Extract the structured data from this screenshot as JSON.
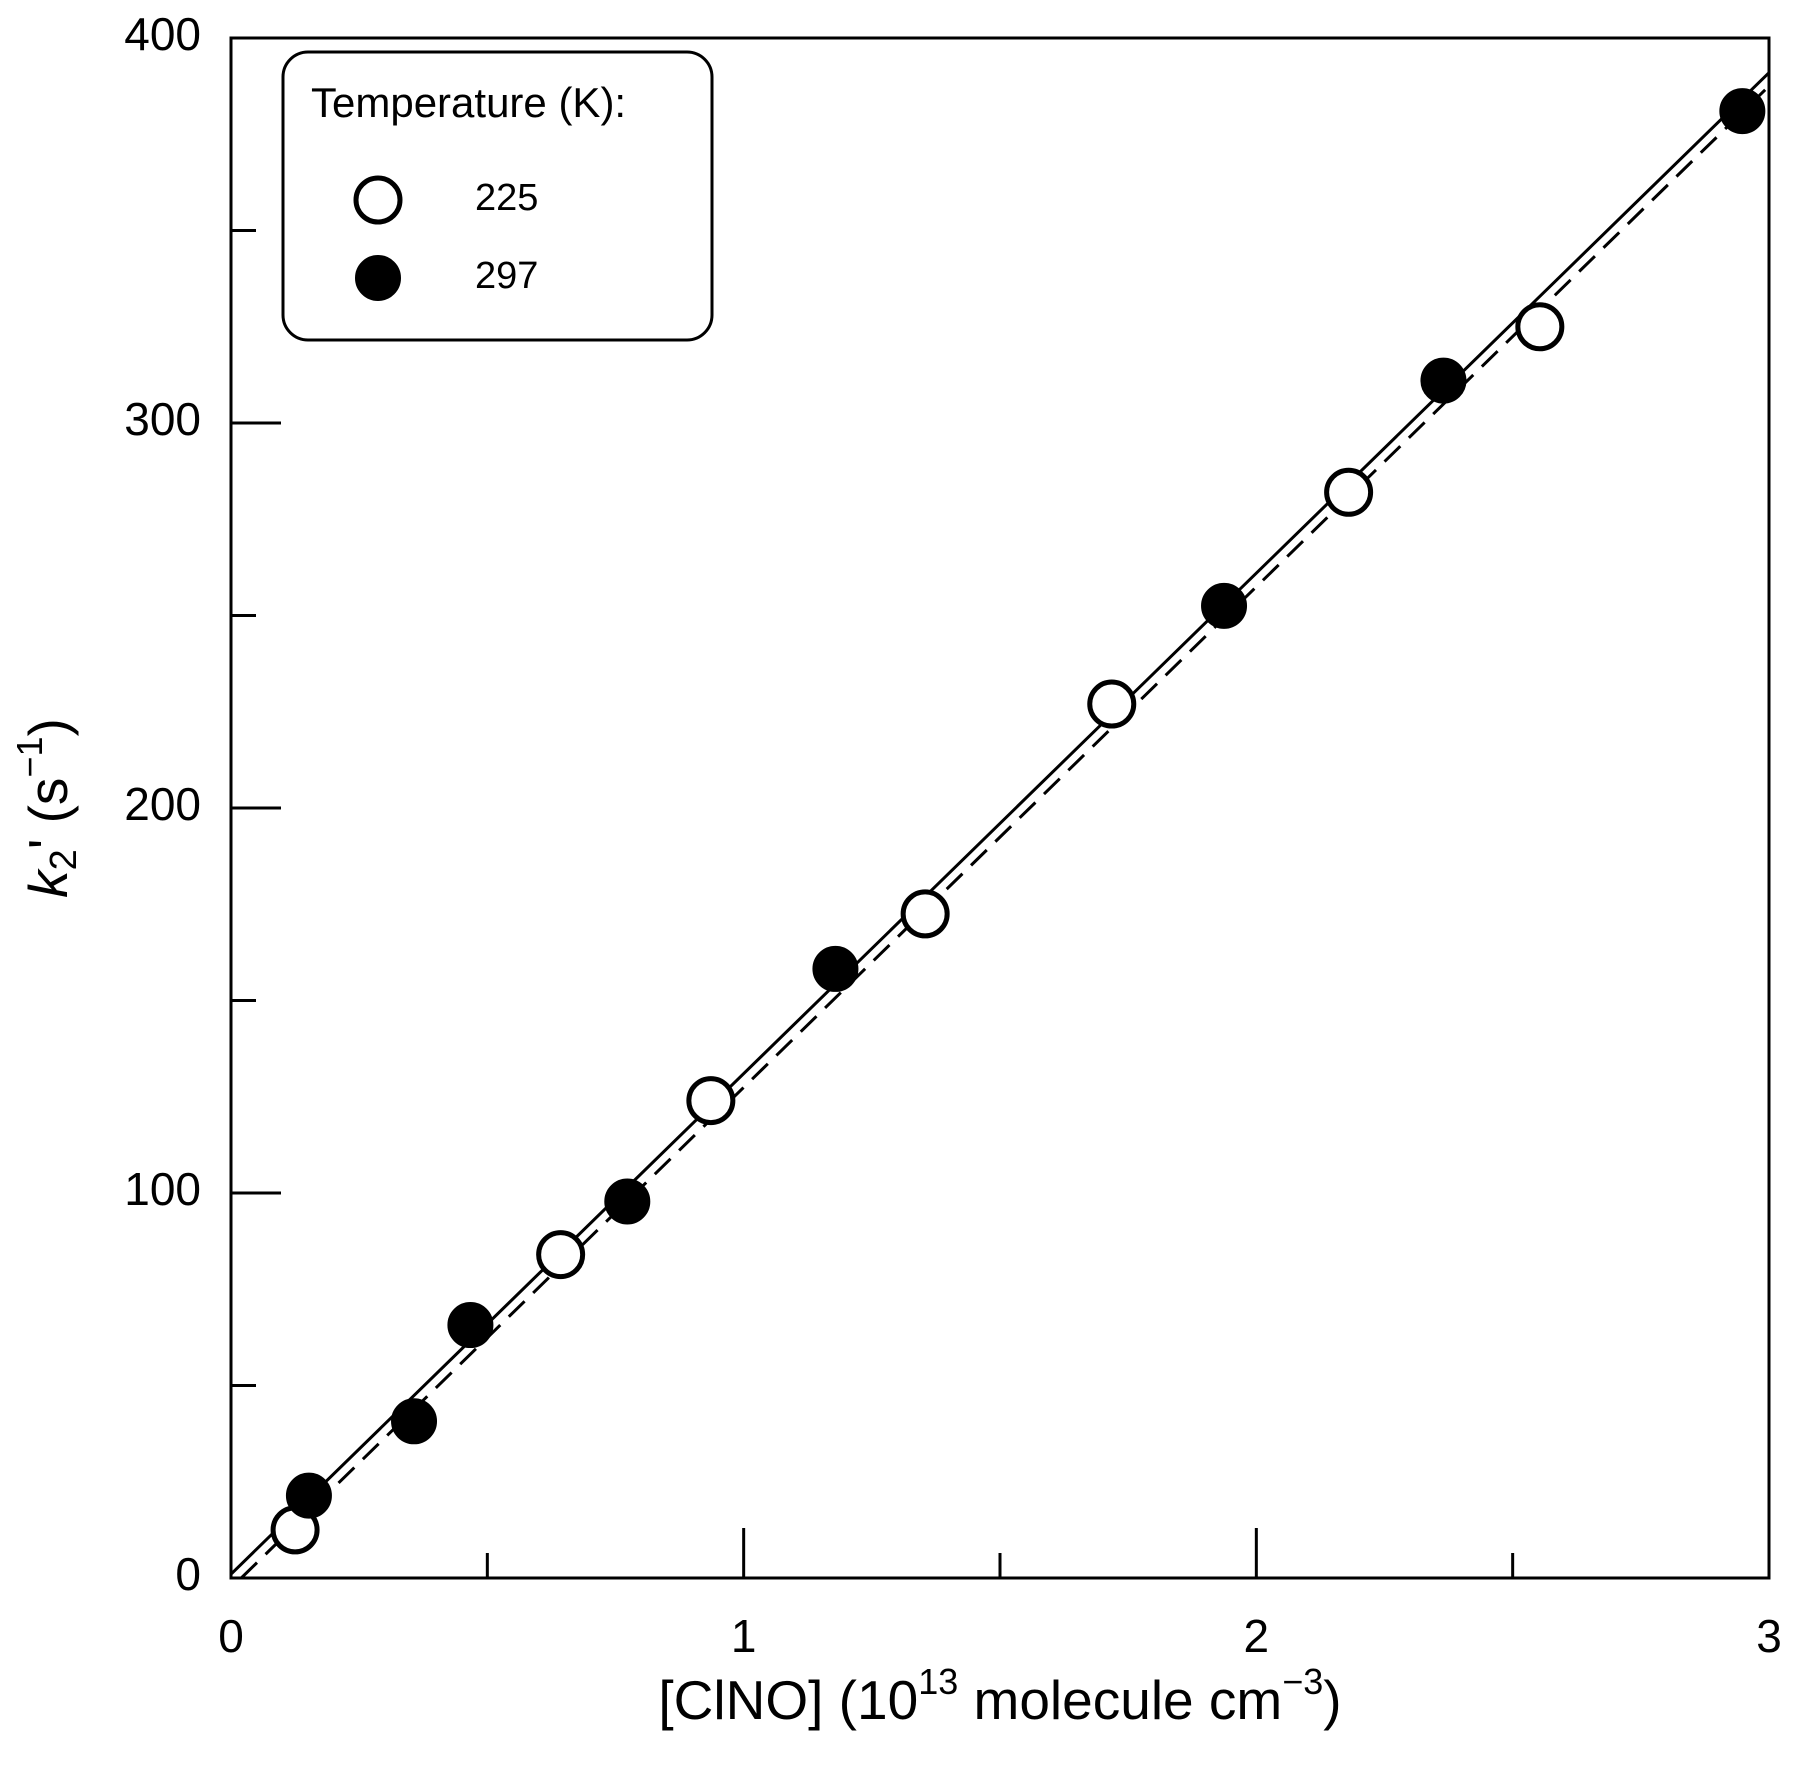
{
  "chart_data": {
    "type": "scatter",
    "xlabel_parts": [
      "[ClNO] (10",
      "13",
      " molecule cm",
      "−3",
      ")"
    ],
    "ylabel_parts": [
      "k",
      "2",
      "' (s",
      "−1",
      ")"
    ],
    "legend_title": "Temperature (K):",
    "legend": "upper left",
    "xlim": [
      0,
      3
    ],
    "xticks": [
      0,
      1,
      2,
      3
    ],
    "xminor": [
      0.5,
      1.5,
      2.5
    ],
    "ylim": [
      0,
      400
    ],
    "yticks": [
      0,
      100,
      200,
      300,
      400
    ],
    "yminor": [
      50,
      150,
      250,
      350
    ],
    "series": [
      {
        "name": "225",
        "color": "#000000",
        "filled": false,
        "x": [
          0.125,
          0.643,
          0.936,
          1.354,
          1.718,
          2.18,
          2.553
        ],
        "values": [
          12.5,
          84,
          124,
          172.5,
          227,
          282,
          325
        ]
      },
      {
        "name": "297",
        "color": "#000000",
        "filled": true,
        "x": [
          0.152,
          0.357,
          0.467,
          0.773,
          1.179,
          1.937,
          2.365,
          2.948
        ],
        "values": [
          21.4,
          40.7,
          65.7,
          97.8,
          158.2,
          252.5,
          311,
          381
        ]
      }
    ],
    "fit_lines": [
      {
        "dashed": false,
        "x": [
          0,
          3
        ],
        "values": [
          1,
          391
        ]
      },
      {
        "dashed": true,
        "x": [
          0.02,
          3
        ],
        "values": [
          0,
          387.5
        ]
      }
    ]
  }
}
